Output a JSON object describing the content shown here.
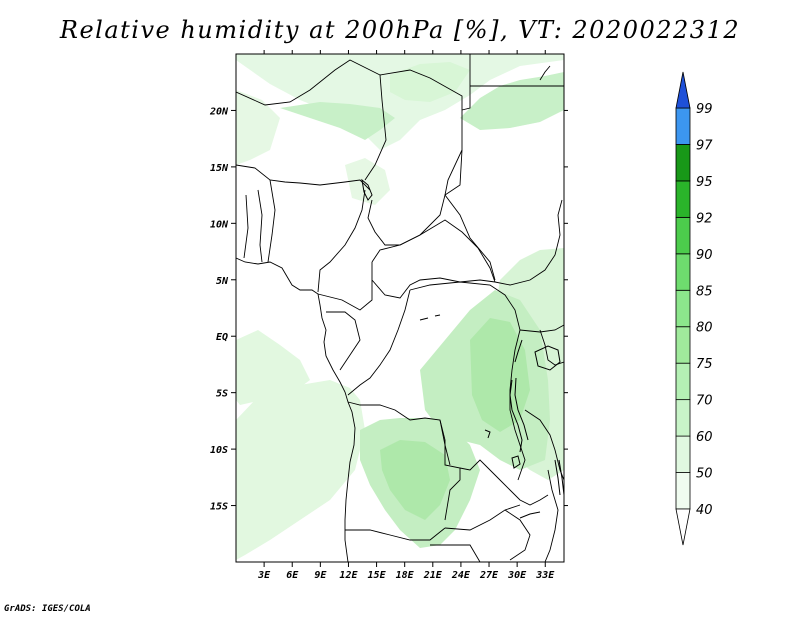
{
  "title": "Relative humidity at 200hPa [%], VT: 2020022312",
  "credit": "GrADS: IGES/COLA",
  "map": {
    "lon_range": [
      0,
      35
    ],
    "lat_range": [
      -20,
      25
    ],
    "lon_ticks": [
      "3E",
      "6E",
      "9E",
      "12E",
      "15E",
      "18E",
      "21E",
      "24E",
      "27E",
      "30E",
      "33E"
    ],
    "lon_tick_values": [
      3,
      6,
      9,
      12,
      15,
      18,
      21,
      24,
      27,
      30,
      33
    ],
    "lat_ticks": [
      "20N",
      "15N",
      "10N",
      "5N",
      "EQ",
      "5S",
      "10S",
      "15S"
    ],
    "lat_tick_values": [
      20,
      15,
      10,
      5,
      0,
      -5,
      -10,
      -15
    ]
  },
  "colorbar": {
    "labels": [
      "40",
      "50",
      "60",
      "70",
      "75",
      "80",
      "85",
      "90",
      "92",
      "95",
      "97",
      "99"
    ],
    "colors": [
      "#f0fcf0",
      "#e0f8e0",
      "#c8f4c8",
      "#b4f0b4",
      "#a0ea9c",
      "#8ce68c",
      "#6edc6e",
      "#4ccc4c",
      "#2ab42a",
      "#189818",
      "#3c96f0",
      "#2878e6",
      "#1e5adc"
    ],
    "lower_color": "#ffffff",
    "upper_color": "#1e50d8"
  }
}
